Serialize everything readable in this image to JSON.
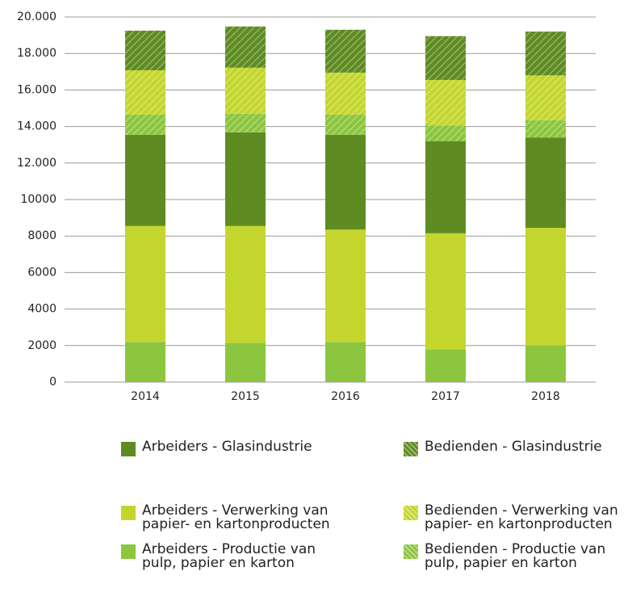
{
  "chart_data": {
    "type": "stacked_bar",
    "categories": [
      "2014",
      "2015",
      "2016",
      "2017",
      "2018"
    ],
    "series": [
      {
        "name": "Arbeiders - Productie van pulp, papier en karton",
        "color": "#8cc63f",
        "pattern": "solid",
        "values": [
          2200,
          2150,
          2200,
          1800,
          2000
        ]
      },
      {
        "name": "Arbeiders - Verwerking van papier- en kartonproducten",
        "color": "#c4d62e",
        "pattern": "solid",
        "values": [
          6350,
          6400,
          6150,
          6350,
          6450
        ]
      },
      {
        "name": "Arbeiders - Glasindustrie",
        "color": "#5f8c22",
        "pattern": "solid",
        "values": [
          5000,
          5130,
          5200,
          5050,
          4950
        ]
      },
      {
        "name": "Bedienden - Productie van pulp, papier en karton",
        "color": "#8cc63f",
        "pattern": "hatch",
        "values": [
          1100,
          1020,
          1100,
          850,
          950
        ]
      },
      {
        "name": "Bedienden - Verwerking van papier- en kartonproducten",
        "color": "#c4d62e",
        "pattern": "hatch",
        "values": [
          2430,
          2520,
          2300,
          2500,
          2450
        ]
      },
      {
        "name": "Bedienden - Glasindustrie",
        "color": "#5f8c22",
        "pattern": "hatch",
        "values": [
          2170,
          2260,
          2350,
          2400,
          2400
        ]
      }
    ],
    "ylim": [
      0,
      20000
    ],
    "yticks": [
      0,
      2000,
      4000,
      6000,
      8000,
      10000,
      {
        "value": 12000,
        "label": "12.000"
      },
      {
        "value": 14000,
        "label": "14.000"
      },
      {
        "value": 16000,
        "label": "16.000"
      },
      {
        "value": 18000,
        "label": "18.000"
      },
      {
        "value": 20000,
        "label": "20.000"
      }
    ],
    "grid": true
  }
}
